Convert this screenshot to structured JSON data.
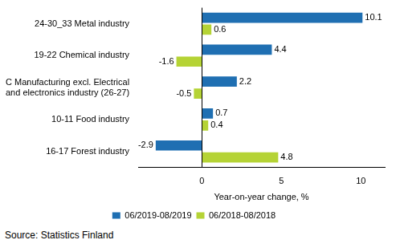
{
  "chart_data": {
    "type": "bar",
    "orientation": "horizontal",
    "categories": [
      "24-30_33 Metal industry",
      "19-22 Chemical industry",
      "C Manufacturing excl. Electrical\nand electronics industry (26-27)",
      "10-11 Food industry",
      "16-17 Forest industry"
    ],
    "series": [
      {
        "name": "06/2019-08/2019",
        "color": "#1f6fb2",
        "values": [
          10.1,
          4.4,
          2.2,
          0.7,
          -2.9
        ]
      },
      {
        "name": "06/2018-08/2018",
        "color": "#b5d335",
        "values": [
          0.6,
          -1.6,
          -0.5,
          0.4,
          4.8
        ]
      }
    ],
    "x_label": "Year-on-year change, %",
    "annotation": "Source: Statistics Finland",
    "xlim": [
      -4,
      11.5
    ],
    "xticks": [
      0,
      5,
      10
    ],
    "grid": false,
    "legend": "bottom",
    "data_labels": true
  }
}
